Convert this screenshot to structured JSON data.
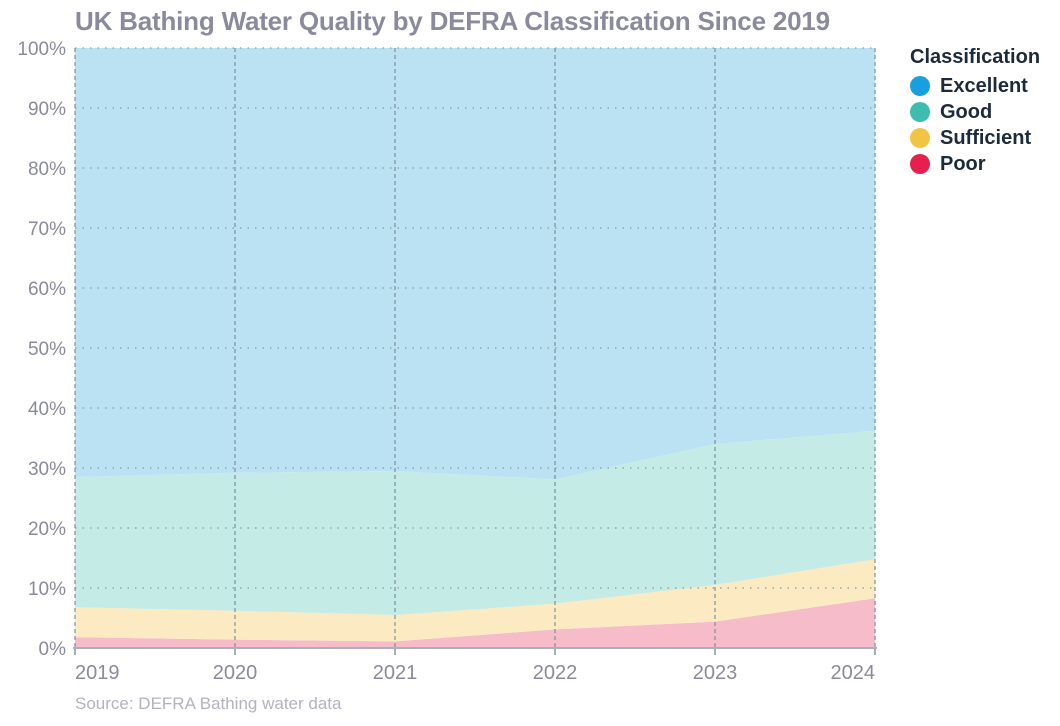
{
  "title": "UK Bathing Water Quality by DEFRA Classification Since 2019",
  "source": "Source: DEFRA Bathing water data",
  "legend": {
    "title": "Classification",
    "items": [
      {
        "label": "Excellent",
        "color": "#1a9fde"
      },
      {
        "label": "Good",
        "color": "#3dbdaf"
      },
      {
        "label": "Sufficient",
        "color": "#f2c443"
      },
      {
        "label": "Poor",
        "color": "#e5204e"
      }
    ]
  },
  "chart_data": {
    "type": "area",
    "stacked": true,
    "title": "UK Bathing Water Quality by DEFRA Classification Since 2019",
    "categories": [
      "2019",
      "2020",
      "2021",
      "2022",
      "2023",
      "2024"
    ],
    "ylim": [
      0,
      100
    ],
    "yticks": [
      0,
      10,
      20,
      30,
      40,
      50,
      60,
      70,
      80,
      90,
      100
    ],
    "ytick_labels": [
      "0%",
      "10%",
      "20%",
      "30%",
      "40%",
      "50%",
      "60%",
      "70%",
      "80%",
      "90%",
      "100%"
    ],
    "grid": true,
    "legend_position": "right",
    "series": [
      {
        "name": "Poor",
        "color": "#f7bcc9",
        "values": [
          1.8,
          1.4,
          1.1,
          3.1,
          4.4,
          8.3
        ]
      },
      {
        "name": "Sufficient",
        "color": "#fbeac2",
        "values": [
          5.0,
          4.8,
          4.4,
          4.3,
          6.1,
          6.5
        ]
      },
      {
        "name": "Good",
        "color": "#c5ebe6",
        "values": [
          21.7,
          23.0,
          24.0,
          20.7,
          23.5,
          21.4
        ]
      },
      {
        "name": "Excellent",
        "color": "#bae2f3",
        "values": [
          71.5,
          70.8,
          70.5,
          71.9,
          66.0,
          63.8
        ]
      }
    ]
  }
}
